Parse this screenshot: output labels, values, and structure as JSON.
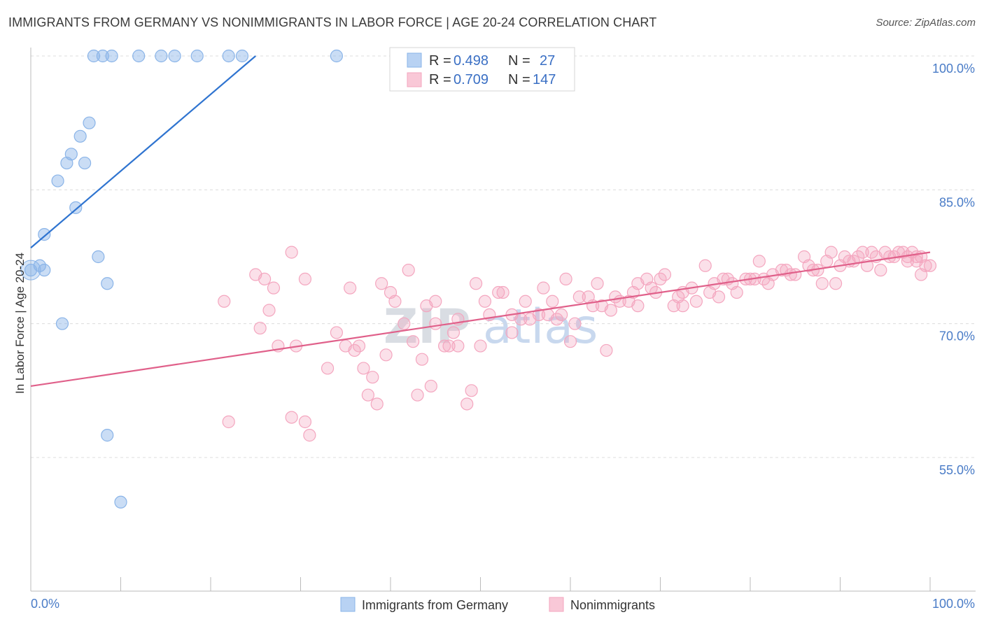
{
  "header": {
    "title": "IMMIGRANTS FROM GERMANY VS NONIMMIGRANTS IN LABOR FORCE | AGE 20-24 CORRELATION CHART",
    "source": "Source: ZipAtlas.com"
  },
  "chart_data": {
    "type": "scatter",
    "ylabel": "In Labor Force | Age 20-24",
    "xlim": [
      0,
      100
    ],
    "ylim": [
      40,
      103
    ],
    "x_tick_labels": [
      "0.0%",
      "100.0%"
    ],
    "y_ticks": [
      55,
      70,
      85,
      100
    ],
    "y_tick_labels": [
      "55.0%",
      "70.0%",
      "85.0%",
      "100.0%"
    ],
    "grid": "horizontal dashed",
    "watermark": {
      "part1": "ZIP",
      "part2": "atlas"
    },
    "legend": {
      "placement": "top-center",
      "rows": [
        {
          "r_label": "R =",
          "r_value": "0.498",
          "n_label": "N =",
          "n_value": "27"
        },
        {
          "r_label": "R =",
          "r_value": "0.709",
          "n_label": "N =",
          "n_value": "147"
        }
      ]
    },
    "series": [
      {
        "name": "Immigrants from Germany",
        "color": "#8ab4e8",
        "line_color": "#2f74d0",
        "trend": [
          [
            0,
            78.5
          ],
          [
            25,
            100
          ]
        ],
        "points": [
          [
            7,
            100
          ],
          [
            8,
            100
          ],
          [
            9,
            100
          ],
          [
            12,
            100
          ],
          [
            14.5,
            100
          ],
          [
            16,
            100
          ],
          [
            18.5,
            100
          ],
          [
            22,
            100
          ],
          [
            23.5,
            100
          ],
          [
            34,
            100
          ],
          [
            6.5,
            92.5
          ],
          [
            5.5,
            91
          ],
          [
            4.5,
            89
          ],
          [
            4,
            88
          ],
          [
            6,
            88
          ],
          [
            3,
            86
          ],
          [
            5,
            83
          ],
          [
            1.5,
            80
          ],
          [
            0,
            76
          ],
          [
            1,
            76.5
          ],
          [
            1.5,
            76
          ],
          [
            7.5,
            77.5
          ],
          [
            8.5,
            74.5
          ],
          [
            3.5,
            70
          ],
          [
            8.5,
            57.5
          ],
          [
            10,
            50
          ]
        ]
      },
      {
        "name": "Nonimmigrants",
        "color": "#f4a6bf",
        "line_color": "#e0608a",
        "trend": [
          [
            0,
            63
          ],
          [
            100,
            78
          ]
        ],
        "points": [
          [
            21.5,
            72.5
          ],
          [
            25,
            75.5
          ],
          [
            26,
            75
          ],
          [
            26.5,
            71.5
          ],
          [
            27,
            74
          ],
          [
            29,
            78
          ],
          [
            25.5,
            69.5
          ],
          [
            27.5,
            67.5
          ],
          [
            29.5,
            67.5
          ],
          [
            30.5,
            75
          ],
          [
            22,
            59
          ],
          [
            29,
            59.5
          ],
          [
            30.5,
            59
          ],
          [
            31,
            57.5
          ],
          [
            33,
            65
          ],
          [
            34,
            69
          ],
          [
            35,
            67.5
          ],
          [
            35.5,
            74
          ],
          [
            36,
            67
          ],
          [
            36.5,
            67.5
          ],
          [
            37,
            65
          ],
          [
            38,
            64
          ],
          [
            37.5,
            62
          ],
          [
            38.5,
            61
          ],
          [
            39,
            74.5
          ],
          [
            40,
            73.5
          ],
          [
            40.5,
            72.5
          ],
          [
            39.5,
            66.5
          ],
          [
            41.5,
            70
          ],
          [
            42,
            76
          ],
          [
            42.5,
            68
          ],
          [
            43,
            62
          ],
          [
            43.5,
            66
          ],
          [
            44,
            72
          ],
          [
            44.5,
            63
          ],
          [
            45,
            72.5
          ],
          [
            45,
            70
          ],
          [
            46,
            67.5
          ],
          [
            46.5,
            67.5
          ],
          [
            47,
            69
          ],
          [
            47.5,
            70.5
          ],
          [
            47.5,
            67.5
          ],
          [
            48.5,
            61
          ],
          [
            49,
            62.5
          ],
          [
            49.5,
            74.5
          ],
          [
            50,
            67.5
          ],
          [
            50.5,
            72.5
          ],
          [
            51,
            71
          ],
          [
            52,
            73.5
          ],
          [
            52.5,
            73.5
          ],
          [
            53.5,
            71
          ],
          [
            53.5,
            69
          ],
          [
            54.5,
            70.5
          ],
          [
            55,
            72.5
          ],
          [
            55.5,
            70.5
          ],
          [
            56.5,
            71
          ],
          [
            57,
            74
          ],
          [
            57.5,
            71
          ],
          [
            58,
            72.5
          ],
          [
            59,
            71
          ],
          [
            58.5,
            70.5
          ],
          [
            59.5,
            75
          ],
          [
            60,
            68
          ],
          [
            60.5,
            70
          ],
          [
            61,
            73
          ],
          [
            62,
            73
          ],
          [
            62.5,
            72
          ],
          [
            63,
            74.5
          ],
          [
            63.5,
            72
          ],
          [
            64,
            67
          ],
          [
            64.5,
            71.5
          ],
          [
            65,
            73
          ],
          [
            65.5,
            72.5
          ],
          [
            66.5,
            72.5
          ],
          [
            67,
            73.5
          ],
          [
            67.5,
            72
          ],
          [
            67.5,
            74.5
          ],
          [
            68.5,
            75
          ],
          [
            69,
            74
          ],
          [
            69.5,
            73.5
          ],
          [
            70,
            75
          ],
          [
            70.5,
            75.5
          ],
          [
            71.5,
            72
          ],
          [
            72,
            73
          ],
          [
            72.5,
            72
          ],
          [
            72.5,
            73.5
          ],
          [
            73.5,
            74
          ],
          [
            74,
            72.5
          ],
          [
            75,
            76.5
          ],
          [
            75.5,
            73.5
          ],
          [
            76,
            74.5
          ],
          [
            76.5,
            73
          ],
          [
            77,
            75
          ],
          [
            77.5,
            75
          ],
          [
            78,
            74.5
          ],
          [
            78.5,
            73.5
          ],
          [
            79.5,
            75
          ],
          [
            80,
            75
          ],
          [
            80.5,
            75
          ],
          [
            81,
            77
          ],
          [
            81.5,
            75
          ],
          [
            82,
            74.5
          ],
          [
            82.5,
            75.5
          ],
          [
            83.5,
            76
          ],
          [
            84,
            76
          ],
          [
            84.5,
            75.5
          ],
          [
            85,
            75.5
          ],
          [
            86,
            77.5
          ],
          [
            86.5,
            76.5
          ],
          [
            87,
            76
          ],
          [
            87.5,
            76
          ],
          [
            88,
            74.5
          ],
          [
            88.5,
            77
          ],
          [
            89,
            78
          ],
          [
            89.5,
            74.5
          ],
          [
            90,
            76.5
          ],
          [
            90.5,
            77.5
          ],
          [
            91,
            77
          ],
          [
            91.5,
            77
          ],
          [
            92,
            77.5
          ],
          [
            92.5,
            78
          ],
          [
            93,
            76.5
          ],
          [
            93.5,
            78
          ],
          [
            94,
            77.5
          ],
          [
            94.5,
            76
          ],
          [
            95,
            78
          ],
          [
            95.5,
            77.5
          ],
          [
            96,
            77.5
          ],
          [
            96.5,
            78
          ],
          [
            97,
            78
          ],
          [
            97.5,
            77.5
          ],
          [
            97.5,
            77
          ],
          [
            98,
            78
          ],
          [
            98.5,
            77.5
          ],
          [
            99,
            77.5
          ],
          [
            99.5,
            76.5
          ],
          [
            100,
            76.5
          ],
          [
            99,
            75.5
          ],
          [
            98.5,
            77
          ]
        ]
      }
    ]
  }
}
